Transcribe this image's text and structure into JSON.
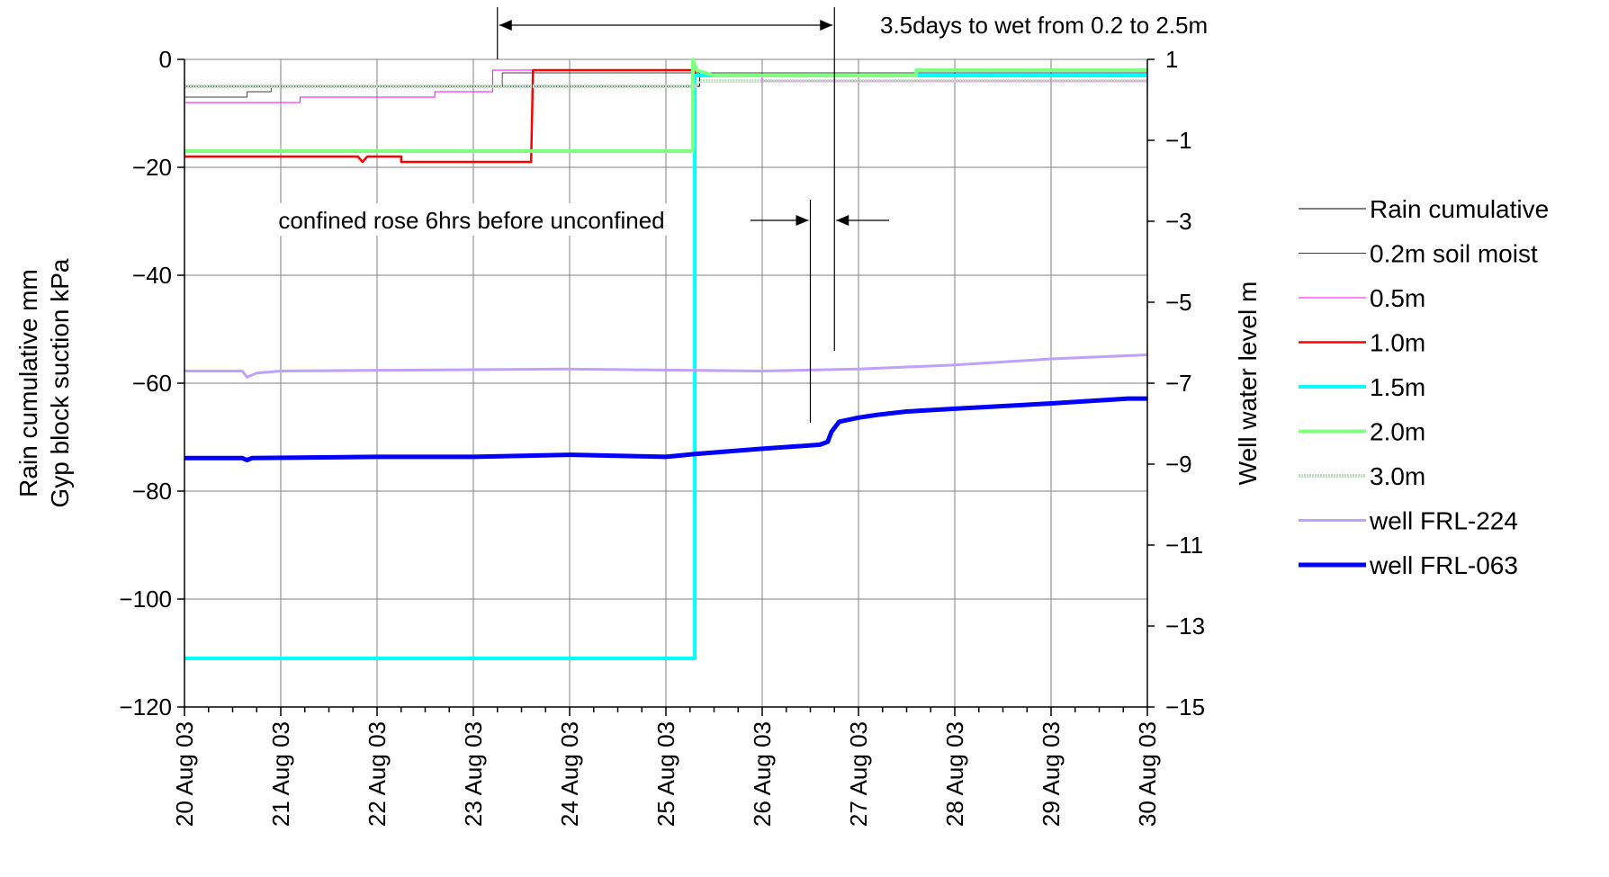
{
  "chart_data": {
    "type": "line",
    "x": [
      "20 Aug 03",
      "21 Aug 03",
      "22 Aug 03",
      "23 Aug 03",
      "24 Aug 03",
      "25 Aug 03",
      "26 Aug 03",
      "27 Aug 03",
      "28 Aug 03",
      "29 Aug 03",
      "30 Aug 03"
    ],
    "xlim": [
      0,
      10
    ],
    "ylabel": "Rain cumulative mm\nGyp block suction kPa",
    "ylim": [
      -120,
      0
    ],
    "yticks": [
      0,
      -20,
      -40,
      -60,
      -80,
      -100,
      -120
    ],
    "y2label": "Well water level m",
    "y2lim": [
      -15,
      1
    ],
    "y2ticks": [
      1,
      -1,
      -3,
      -5,
      -7,
      -9,
      -11,
      -13,
      -15
    ],
    "grid": true,
    "legend_position": "right",
    "series": [
      {
        "name": "Rain cumulative",
        "axis": "left",
        "color": "#000000",
        "width": 1,
        "points": [
          [
            0,
            -5
          ],
          [
            5.35,
            -5
          ],
          [
            5.35,
            -3
          ],
          [
            10,
            -3
          ]
        ]
      },
      {
        "name": "0.2m soil moist",
        "axis": "left",
        "color": "#000000",
        "width": 0.7,
        "points": [
          [
            0,
            -7
          ],
          [
            0.65,
            -7
          ],
          [
            0.65,
            -6
          ],
          [
            0.9,
            -6
          ],
          [
            0.9,
            -5
          ],
          [
            3.3,
            -5
          ],
          [
            3.3,
            -2.5
          ],
          [
            10,
            -2.5
          ]
        ]
      },
      {
        "name": "0.5m",
        "axis": "left",
        "color": "#ff00ff",
        "width": 1,
        "points": [
          [
            0,
            -8
          ],
          [
            1.2,
            -8
          ],
          [
            1.2,
            -7
          ],
          [
            2.6,
            -7
          ],
          [
            2.6,
            -6
          ],
          [
            3.2,
            -6
          ],
          [
            3.2,
            -2
          ],
          [
            5.35,
            -2
          ],
          [
            5.35,
            -3
          ],
          [
            6,
            -3
          ],
          [
            6,
            -4
          ],
          [
            10,
            -4
          ]
        ]
      },
      {
        "name": "1.0m",
        "axis": "left",
        "color": "#ff0000",
        "width": 2.5,
        "points": [
          [
            0,
            -18
          ],
          [
            1.8,
            -18
          ],
          [
            1.85,
            -19
          ],
          [
            1.9,
            -18
          ],
          [
            2.25,
            -18
          ],
          [
            2.25,
            -19
          ],
          [
            3.6,
            -19
          ],
          [
            3.62,
            -2
          ],
          [
            5.3,
            -2
          ],
          [
            5.3,
            -3
          ],
          [
            10,
            -3
          ]
        ]
      },
      {
        "name": "1.5m",
        "axis": "left",
        "color": "#00ffff",
        "width": 4,
        "points": [
          [
            0,
            -111
          ],
          [
            5.3,
            -111
          ],
          [
            5.3,
            -3
          ],
          [
            10,
            -3
          ]
        ]
      },
      {
        "name": "2.0m",
        "axis": "left",
        "color": "#80ff80",
        "width": 4,
        "points": [
          [
            0,
            -17
          ],
          [
            5.28,
            -17
          ],
          [
            5.28,
            0
          ],
          [
            5.32,
            -2
          ],
          [
            5.5,
            -3
          ],
          [
            7.6,
            -3
          ],
          [
            7.6,
            -2
          ],
          [
            10,
            -2
          ]
        ]
      },
      {
        "name": "3.0m",
        "axis": "left",
        "color": "#c0dcc0",
        "width": 4,
        "dashed": true,
        "points": [
          [
            0,
            -5
          ],
          [
            5.3,
            -5
          ],
          [
            5.35,
            -4
          ],
          [
            10,
            -4
          ]
        ]
      },
      {
        "name": "well FRL-224",
        "axis": "right",
        "color": "#c0a0ff",
        "width": 3,
        "points": [
          [
            0,
            -6.7
          ],
          [
            0.6,
            -6.7
          ],
          [
            0.65,
            -6.85
          ],
          [
            0.75,
            -6.75
          ],
          [
            1,
            -6.7
          ],
          [
            4,
            -6.65
          ],
          [
            6,
            -6.7
          ],
          [
            7,
            -6.65
          ],
          [
            8,
            -6.55
          ],
          [
            9,
            -6.4
          ],
          [
            10,
            -6.3
          ]
        ]
      },
      {
        "name": "well FRL-063",
        "axis": "right",
        "color": "#0000ff",
        "width": 5,
        "points": [
          [
            0,
            -8.85
          ],
          [
            0.6,
            -8.85
          ],
          [
            0.65,
            -8.9
          ],
          [
            0.7,
            -8.85
          ],
          [
            2,
            -8.82
          ],
          [
            3,
            -8.82
          ],
          [
            4,
            -8.77
          ],
          [
            5,
            -8.82
          ],
          [
            5.3,
            -8.75
          ],
          [
            6,
            -8.62
          ],
          [
            6.6,
            -8.52
          ],
          [
            6.68,
            -8.45
          ],
          [
            6.72,
            -8.2
          ],
          [
            6.8,
            -7.95
          ],
          [
            7,
            -7.85
          ],
          [
            7.2,
            -7.78
          ],
          [
            7.5,
            -7.7
          ],
          [
            8,
            -7.63
          ],
          [
            9,
            -7.5
          ],
          [
            9.8,
            -7.38
          ],
          [
            10,
            -7.38
          ]
        ]
      }
    ],
    "annotations": [
      {
        "text": "3.5days to wet from 0.2 to 2.5m",
        "x_from": 3.25,
        "x_to": 6.75
      },
      {
        "text": "confined rose 6hrs before unconfined",
        "x_from": 6.5,
        "x_to": 6.75
      }
    ]
  }
}
